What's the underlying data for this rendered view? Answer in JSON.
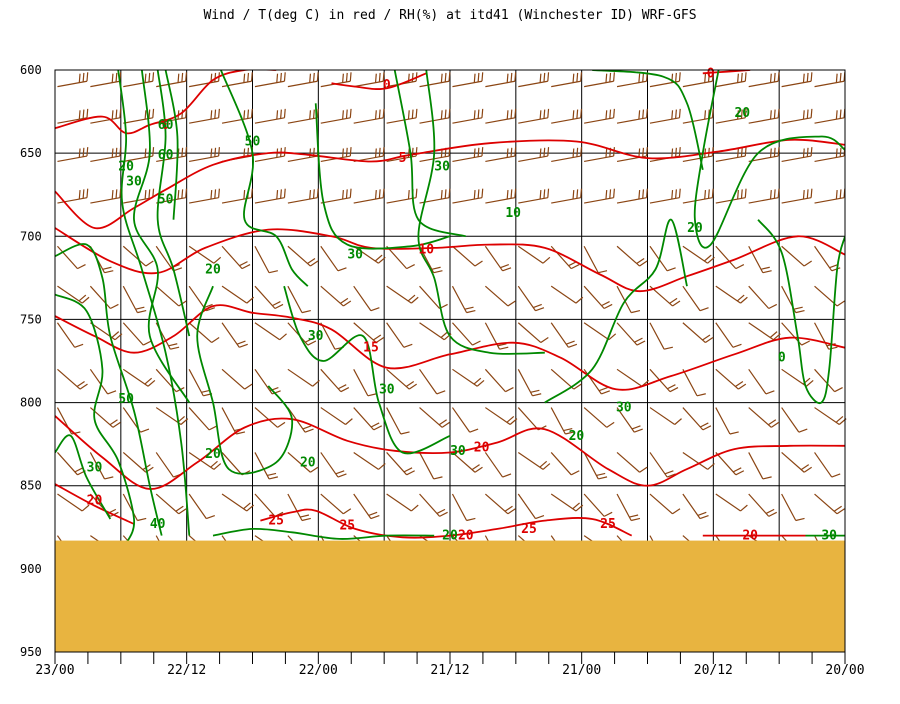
{
  "chart_data": {
    "type": "line",
    "title": "Wind / T(deg C) in red / RH(%) at itd41 (Winchester ID)  WRF-GFS",
    "y_axis": {
      "quantity": "pressure_hPa",
      "range": [
        600,
        950
      ],
      "inverted": true,
      "ticks": [
        "600",
        "650",
        "700",
        "750",
        "800",
        "850",
        "900",
        "950"
      ]
    },
    "x_axis": {
      "reversed": true,
      "ticks": [
        "23/00",
        "22/12",
        "22/00",
        "21/12",
        "21/00",
        "20/12",
        "20/00"
      ]
    },
    "grid": true,
    "ground_level_hpa": 883,
    "colors": {
      "temperature": "#dd0000",
      "rh": "#008800",
      "wind": "#8b4513",
      "ground": "#e8b440",
      "grid": "#000000"
    },
    "temperature_labels": [
      {
        "text": "0",
        "t": 0.42,
        "p": 609
      },
      {
        "text": "0",
        "t": 0.83,
        "p": 602
      },
      {
        "text": "0",
        "t": 0.14,
        "p": 633
      },
      {
        "text": "5",
        "t": 0.44,
        "p": 653
      },
      {
        "text": "10",
        "t": 0.47,
        "p": 708
      },
      {
        "text": "15",
        "t": 0.4,
        "p": 767
      },
      {
        "text": "20",
        "t": 0.54,
        "p": 827
      },
      {
        "text": "20",
        "t": 0.05,
        "p": 859
      },
      {
        "text": "20",
        "t": 0.52,
        "p": 880
      },
      {
        "text": "20",
        "t": 0.88,
        "p": 880
      },
      {
        "text": "25",
        "t": 0.28,
        "p": 871
      },
      {
        "text": "25",
        "t": 0.37,
        "p": 874
      },
      {
        "text": "25",
        "t": 0.6,
        "p": 876
      },
      {
        "text": "25",
        "t": 0.7,
        "p": 873
      }
    ],
    "rh_labels": [
      {
        "text": "60",
        "t": 0.14,
        "p": 633
      },
      {
        "text": "60",
        "t": 0.14,
        "p": 651
      },
      {
        "text": "50",
        "t": 0.25,
        "p": 643
      },
      {
        "text": "50",
        "t": 0.14,
        "p": 678
      },
      {
        "text": "20",
        "t": 0.09,
        "p": 658
      },
      {
        "text": "30",
        "t": 0.1,
        "p": 667
      },
      {
        "text": "30",
        "t": 0.49,
        "p": 658
      },
      {
        "text": "10",
        "t": 0.58,
        "p": 686
      },
      {
        "text": "20",
        "t": 0.87,
        "p": 626
      },
      {
        "text": "20",
        "t": 0.81,
        "p": 695
      },
      {
        "text": "20",
        "t": 0.2,
        "p": 720
      },
      {
        "text": "30",
        "t": 0.38,
        "p": 711
      },
      {
        "text": "30",
        "t": 0.33,
        "p": 760
      },
      {
        "text": "30",
        "t": 0.42,
        "p": 792
      },
      {
        "text": "50",
        "t": 0.09,
        "p": 798
      },
      {
        "text": "30",
        "t": 0.72,
        "p": 803
      },
      {
        "text": "20",
        "t": 0.66,
        "p": 820
      },
      {
        "text": "20",
        "t": 0.2,
        "p": 831
      },
      {
        "text": "20",
        "t": 0.32,
        "p": 836
      },
      {
        "text": "30",
        "t": 0.51,
        "p": 829
      },
      {
        "text": "30",
        "t": 0.05,
        "p": 839
      },
      {
        "text": "40",
        "t": 0.13,
        "p": 873
      },
      {
        "text": "20",
        "t": 0.5,
        "p": 880
      },
      {
        "text": "0",
        "t": 0.92,
        "p": 773
      },
      {
        "text": "30",
        "t": 0.98,
        "p": 880
      }
    ],
    "series": [
      {
        "kind": "temperature",
        "value": 0,
        "points": [
          [
            0.35,
            608
          ],
          [
            0.38,
            610
          ],
          [
            0.42,
            611
          ],
          [
            0.47,
            602
          ]
        ]
      },
      {
        "kind": "temperature",
        "value": 0,
        "points": [
          [
            0.82,
            602
          ],
          [
            0.85,
            601
          ],
          [
            0.88,
            600
          ]
        ]
      },
      {
        "kind": "temperature",
        "value": 0,
        "points": [
          [
            0,
            635
          ],
          [
            0.06,
            628
          ],
          [
            0.09,
            638
          ],
          [
            0.12,
            633
          ],
          [
            0.16,
            626
          ],
          [
            0.2,
            606
          ],
          [
            0.24,
            600
          ],
          [
            0.28,
            600
          ]
        ]
      },
      {
        "kind": "temperature",
        "value": 5,
        "points": [
          [
            0,
            673
          ],
          [
            0.05,
            695
          ],
          [
            0.1,
            683
          ],
          [
            0.14,
            672
          ],
          [
            0.2,
            657
          ],
          [
            0.27,
            650
          ],
          [
            0.32,
            651
          ],
          [
            0.4,
            655
          ],
          [
            0.45,
            651
          ],
          [
            0.55,
            644
          ],
          [
            0.66,
            643
          ],
          [
            0.75,
            653
          ],
          [
            0.84,
            649
          ],
          [
            0.93,
            642
          ],
          [
            1,
            645
          ]
        ]
      },
      {
        "kind": "temperature",
        "value": 10,
        "points": [
          [
            0,
            695
          ],
          [
            0.07,
            715
          ],
          [
            0.13,
            722
          ],
          [
            0.19,
            707
          ],
          [
            0.27,
            696
          ],
          [
            0.35,
            700
          ],
          [
            0.4,
            707
          ],
          [
            0.48,
            707
          ],
          [
            0.55,
            705
          ],
          [
            0.62,
            707
          ],
          [
            0.69,
            723
          ],
          [
            0.74,
            733
          ],
          [
            0.8,
            724
          ],
          [
            0.86,
            714
          ],
          [
            0.94,
            700
          ],
          [
            1,
            711
          ]
        ]
      },
      {
        "kind": "temperature",
        "value": 15,
        "points": [
          [
            0,
            748
          ],
          [
            0.05,
            760
          ],
          [
            0.1,
            770
          ],
          [
            0.15,
            760
          ],
          [
            0.2,
            742
          ],
          [
            0.25,
            746
          ],
          [
            0.3,
            749
          ],
          [
            0.35,
            756
          ],
          [
            0.42,
            779
          ],
          [
            0.5,
            771
          ],
          [
            0.58,
            764
          ],
          [
            0.64,
            773
          ],
          [
            0.71,
            792
          ],
          [
            0.78,
            784
          ],
          [
            0.86,
            771
          ],
          [
            0.93,
            761
          ],
          [
            1,
            767
          ]
        ]
      },
      {
        "kind": "temperature",
        "value": 20,
        "points": [
          [
            0,
            808
          ],
          [
            0.06,
            833
          ],
          [
            0.12,
            852
          ],
          [
            0.18,
            836
          ],
          [
            0.24,
            815
          ],
          [
            0.3,
            810
          ],
          [
            0.37,
            823
          ],
          [
            0.43,
            829
          ],
          [
            0.5,
            830
          ],
          [
            0.56,
            824
          ],
          [
            0.62,
            816
          ],
          [
            0.7,
            840
          ],
          [
            0.75,
            850
          ],
          [
            0.8,
            840
          ],
          [
            0.86,
            828
          ],
          [
            0.93,
            826
          ],
          [
            1,
            826
          ]
        ]
      },
      {
        "kind": "temperature",
        "value": 20,
        "points": [
          [
            0,
            849
          ],
          [
            0.05,
            862
          ],
          [
            0.1,
            873
          ]
        ]
      },
      {
        "kind": "temperature",
        "value": 25,
        "points": [
          [
            0.26,
            871
          ],
          [
            0.3,
            866
          ],
          [
            0.33,
            865
          ],
          [
            0.38,
            876
          ],
          [
            0.44,
            881
          ],
          [
            0.5,
            880
          ],
          [
            0.56,
            876
          ],
          [
            0.62,
            871
          ],
          [
            0.68,
            870
          ],
          [
            0.73,
            880
          ]
        ]
      },
      {
        "kind": "temperature",
        "value": 20,
        "points": [
          [
            0.82,
            880
          ],
          [
            0.88,
            880
          ],
          [
            0.95,
            880
          ]
        ]
      },
      {
        "kind": "rh",
        "value": 20,
        "points": [
          [
            0.08,
            600
          ],
          [
            0.09,
            640
          ],
          [
            0.085,
            680
          ],
          [
            0.11,
            720
          ],
          [
            0.14,
            770
          ],
          [
            0.16,
            825
          ],
          [
            0.17,
            880
          ]
        ]
      },
      {
        "kind": "rh",
        "value": 30,
        "points": [
          [
            0.11,
            600
          ],
          [
            0.12,
            650
          ],
          [
            0.1,
            690
          ],
          [
            0.13,
            720
          ],
          [
            0.12,
            760
          ],
          [
            0.17,
            800
          ]
        ]
      },
      {
        "kind": "rh",
        "value": 50,
        "points": [
          [
            0.13,
            600
          ],
          [
            0.14,
            640
          ],
          [
            0.13,
            690
          ],
          [
            0.15,
            720
          ],
          [
            0.17,
            760
          ]
        ]
      },
      {
        "kind": "rh",
        "value": 60,
        "points": [
          [
            0.14,
            600
          ],
          [
            0.155,
            640
          ],
          [
            0.15,
            690
          ]
        ]
      },
      {
        "kind": "rh",
        "value": 50,
        "points": [
          [
            0.21,
            600
          ],
          [
            0.25,
            650
          ],
          [
            0.24,
            690
          ],
          [
            0.28,
            700
          ],
          [
            0.3,
            720
          ],
          [
            0.32,
            730
          ]
        ]
      },
      {
        "kind": "rh",
        "value": 50,
        "points": [
          [
            0,
            712
          ],
          [
            0.04,
            705
          ],
          [
            0.06,
            725
          ],
          [
            0.07,
            760
          ],
          [
            0.1,
            805
          ],
          [
            0.12,
            850
          ],
          [
            0.135,
            880
          ]
        ]
      },
      {
        "kind": "rh",
        "value": 30,
        "points": [
          [
            0,
            735
          ],
          [
            0.04,
            745
          ],
          [
            0.06,
            780
          ],
          [
            0.05,
            810
          ],
          [
            0.08,
            835
          ],
          [
            0.1,
            870
          ],
          [
            0.09,
            885
          ]
        ]
      },
      {
        "kind": "rh",
        "value": 30,
        "points": [
          [
            0,
            830
          ],
          [
            0.02,
            820
          ],
          [
            0.04,
            845
          ],
          [
            0.07,
            870
          ]
        ]
      },
      {
        "kind": "rh",
        "value": 30,
        "points": [
          [
            0.33,
            620
          ],
          [
            0.34,
            680
          ],
          [
            0.37,
            705
          ],
          [
            0.45,
            706
          ],
          [
            0.5,
            700
          ]
        ]
      },
      {
        "kind": "rh",
        "value": 30,
        "points": [
          [
            0.47,
            600
          ],
          [
            0.48,
            650
          ],
          [
            0.46,
            700
          ],
          [
            0.48,
            725
          ],
          [
            0.5,
            760
          ],
          [
            0.55,
            770
          ],
          [
            0.62,
            770
          ]
        ]
      },
      {
        "kind": "rh",
        "value": 10,
        "points": [
          [
            0.43,
            600
          ],
          [
            0.45,
            650
          ],
          [
            0.46,
            690
          ],
          [
            0.52,
            700
          ]
        ]
      },
      {
        "kind": "rh",
        "value": 20,
        "points": [
          [
            0.84,
            600
          ],
          [
            0.82,
            650
          ],
          [
            0.81,
            690
          ],
          [
            0.83,
            705
          ],
          [
            0.89,
            650
          ],
          [
            0.97,
            640
          ],
          [
            1,
            648
          ]
        ]
      },
      {
        "kind": "rh",
        "value": 20,
        "points": [
          [
            0.68,
            600
          ],
          [
            0.77,
            604
          ],
          [
            0.8,
            620
          ],
          [
            0.82,
            660
          ]
        ]
      },
      {
        "kind": "rh",
        "value": 20,
        "points": [
          [
            0.2,
            730
          ],
          [
            0.18,
            760
          ],
          [
            0.2,
            800
          ],
          [
            0.22,
            840
          ],
          [
            0.28,
            836
          ],
          [
            0.3,
            810
          ],
          [
            0.27,
            790
          ]
        ]
      },
      {
        "kind": "rh",
        "value": 30,
        "points": [
          [
            0.29,
            730
          ],
          [
            0.31,
            760
          ],
          [
            0.34,
            775
          ],
          [
            0.39,
            760
          ],
          [
            0.41,
            800
          ],
          [
            0.44,
            830
          ],
          [
            0.5,
            820
          ]
        ]
      },
      {
        "kind": "rh",
        "value": 30,
        "points": [
          [
            0.62,
            800
          ],
          [
            0.68,
            780
          ],
          [
            0.72,
            740
          ],
          [
            0.76,
            720
          ],
          [
            0.78,
            690
          ],
          [
            0.8,
            730
          ]
        ]
      },
      {
        "kind": "rh",
        "value": 0,
        "points": [
          [
            0.89,
            690
          ],
          [
            0.92,
            710
          ],
          [
            0.94,
            760
          ],
          [
            0.95,
            790
          ],
          [
            0.97,
            800
          ],
          [
            0.98,
            780
          ],
          [
            0.99,
            720
          ],
          [
            1,
            700
          ]
        ]
      },
      {
        "kind": "rh",
        "value": 20,
        "points": [
          [
            0.2,
            880
          ],
          [
            0.25,
            876
          ],
          [
            0.3,
            878
          ],
          [
            0.36,
            882
          ],
          [
            0.42,
            880
          ],
          [
            0.48,
            880
          ]
        ]
      },
      {
        "kind": "rh",
        "value": 30,
        "points": [
          [
            0.95,
            880
          ],
          [
            0.98,
            880
          ],
          [
            1,
            880
          ]
        ]
      }
    ],
    "wind_barbs": {
      "columns": 24,
      "rows_hpa": [
        610,
        632,
        655,
        680,
        706,
        730,
        752,
        780,
        803,
        830,
        855,
        880
      ]
    }
  }
}
